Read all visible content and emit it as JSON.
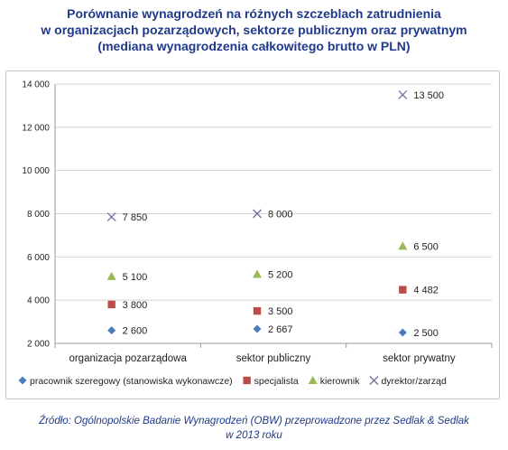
{
  "title_lines": [
    "Porównanie wynagrodzeń  na różnych szczeblach zatrudnienia",
    "w organizacjach pozarządowych, sektorze publicznym oraz prywatnym",
    "(mediana wynagrodzenia całkowitego brutto w PLN)"
  ],
  "source_lines": [
    "Źródło: Ogólnopolskie Badanie Wynagrodzeń (OBW) przeprowadzone  przez  Sedlak & Sedlak",
    "w 2013 roku"
  ],
  "chart_data": {
    "type": "scatter",
    "categories": [
      "organizacja pozarządowa",
      "sektor publiczny",
      "sektor prywatny"
    ],
    "ylim": [
      2000,
      14000
    ],
    "yticks": [
      2000,
      4000,
      6000,
      8000,
      10000,
      12000,
      14000
    ],
    "ytick_labels": [
      "2 000",
      "4 000",
      "6 000",
      "8 000",
      "10 000",
      "12 000",
      "14 000"
    ],
    "grid": "horizontal",
    "legend_position": "bottom",
    "series": [
      {
        "name": "pracownik szeregowy (stanowiska wykonawcze)",
        "marker": "diamond",
        "color": "#4a7ebb",
        "values": [
          2600,
          2667,
          2500
        ],
        "labels": [
          "2 600",
          "2 667",
          "2 500"
        ]
      },
      {
        "name": "specjalista",
        "marker": "square",
        "color": "#be4b48",
        "values": [
          3800,
          3500,
          4482
        ],
        "labels": [
          "3 800",
          "3 500",
          "4 482"
        ]
      },
      {
        "name": "kierownik",
        "marker": "triangle",
        "color": "#98b954",
        "values": [
          5100,
          5200,
          6500
        ],
        "labels": [
          "5 100",
          "5 200",
          "6 500"
        ]
      },
      {
        "name": "dyrektor/zarząd",
        "marker": "x",
        "color": "#7d6aa0",
        "values": [
          7850,
          8000,
          13500
        ],
        "labels": [
          "7 850",
          "8 000",
          "13 500"
        ]
      }
    ]
  }
}
